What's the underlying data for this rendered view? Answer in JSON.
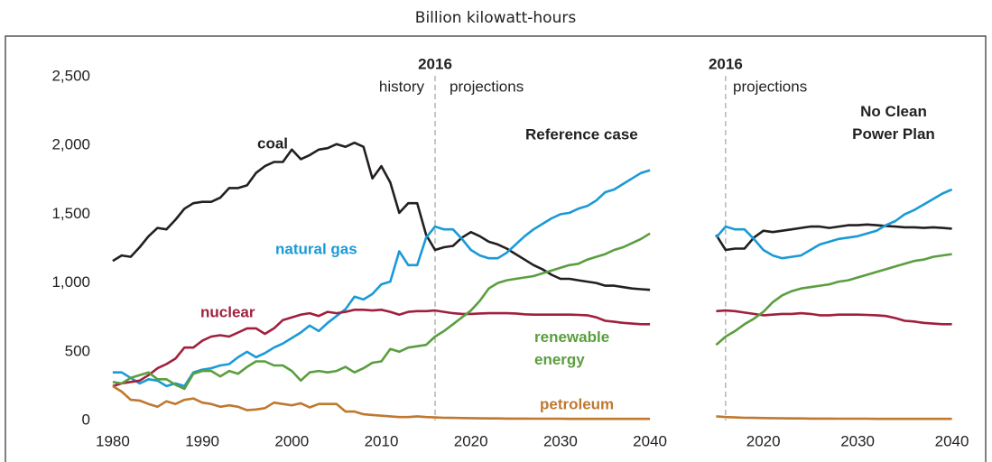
{
  "title": "Billion kilowatt-hours",
  "chart_data": [
    {
      "type": "line",
      "x": [
        1980,
        1981,
        1982,
        1983,
        1984,
        1985,
        1986,
        1987,
        1988,
        1989,
        1990,
        1991,
        1992,
        1993,
        1994,
        1995,
        1996,
        1997,
        1998,
        1999,
        2000,
        2001,
        2002,
        2003,
        2004,
        2005,
        2006,
        2007,
        2008,
        2009,
        2010,
        2011,
        2012,
        2013,
        2014,
        2015,
        2016,
        2017,
        2018,
        2019,
        2020,
        2021,
        2022,
        2023,
        2024,
        2025,
        2026,
        2027,
        2028,
        2029,
        2030,
        2031,
        2032,
        2033,
        2034,
        2035,
        2036,
        2037,
        2038,
        2039,
        2040
      ],
      "xlim": [
        1979,
        2041
      ],
      "xticks": [
        1980,
        1990,
        2000,
        2010,
        2020,
        2030,
        2040
      ],
      "ylim": [
        0,
        2500
      ],
      "yticks": [
        0,
        500,
        {
          "value": 1000,
          "label": "1,000"
        },
        {
          "value": 1500,
          "label": "1,500"
        },
        {
          "value": 2000,
          "label": "2,000"
        },
        {
          "value": 2500,
          "label": "2,500"
        }
      ],
      "divider": 2016,
      "annotations": [
        "history",
        "projections",
        "Reference case"
      ],
      "series": [
        {
          "name": "coal",
          "color": "#231f20",
          "values": [
            1160,
            1200,
            1190,
            1260,
            1340,
            1400,
            1390,
            1460,
            1540,
            1580,
            1590,
            1590,
            1620,
            1690,
            1690,
            1710,
            1800,
            1850,
            1880,
            1880,
            1970,
            1900,
            1930,
            1970,
            1980,
            2010,
            1990,
            2020,
            1990,
            1760,
            1850,
            1730,
            1510,
            1580,
            1580,
            1350,
            1240,
            1260,
            1270,
            1330,
            1370,
            1340,
            1300,
            1280,
            1250,
            1210,
            1170,
            1130,
            1100,
            1060,
            1030,
            1030,
            1020,
            1010,
            1000,
            980,
            980,
            970,
            960,
            955,
            950
          ]
        },
        {
          "name": "natural gas",
          "color": "#1a9ad6",
          "values": [
            350,
            350,
            310,
            270,
            300,
            290,
            250,
            270,
            250,
            350,
            370,
            380,
            400,
            410,
            460,
            500,
            460,
            490,
            530,
            560,
            600,
            640,
            690,
            650,
            710,
            760,
            810,
            900,
            880,
            920,
            990,
            1010,
            1230,
            1130,
            1130,
            1330,
            1410,
            1390,
            1390,
            1320,
            1240,
            1200,
            1180,
            1180,
            1220,
            1280,
            1340,
            1390,
            1430,
            1470,
            1500,
            1510,
            1540,
            1560,
            1600,
            1660,
            1680,
            1720,
            1760,
            1800,
            1820
          ]
        },
        {
          "name": "nuclear",
          "color": "#a0203c",
          "values": [
            250,
            270,
            280,
            290,
            330,
            380,
            410,
            450,
            530,
            530,
            580,
            610,
            620,
            610,
            640,
            670,
            670,
            630,
            670,
            730,
            750,
            770,
            780,
            760,
            790,
            780,
            790,
            805,
            805,
            800,
            805,
            790,
            770,
            790,
            795,
            795,
            800,
            790,
            780,
            775,
            775,
            778,
            780,
            780,
            780,
            778,
            772,
            770,
            770,
            770,
            770,
            770,
            768,
            765,
            750,
            725,
            718,
            710,
            705,
            700,
            700
          ]
        },
        {
          "name": "renewable energy",
          "color": "#5a9e3f",
          "values": [
            280,
            270,
            310,
            330,
            350,
            300,
            300,
            260,
            230,
            340,
            360,
            360,
            320,
            360,
            340,
            390,
            430,
            430,
            400,
            400,
            360,
            290,
            350,
            360,
            350,
            360,
            390,
            350,
            380,
            420,
            430,
            520,
            500,
            530,
            540,
            550,
            610,
            650,
            700,
            750,
            800,
            870,
            960,
            1000,
            1020,
            1030,
            1040,
            1050,
            1070,
            1090,
            1110,
            1130,
            1140,
            1170,
            1190,
            1210,
            1240,
            1260,
            1290,
            1320,
            1360
          ]
        },
        {
          "name": "petroleum",
          "color": "#c0782f",
          "values": [
            250,
            210,
            150,
            145,
            120,
            100,
            140,
            120,
            150,
            160,
            130,
            120,
            100,
            110,
            100,
            75,
            80,
            90,
            130,
            120,
            110,
            125,
            95,
            120,
            120,
            120,
            65,
            65,
            45,
            40,
            35,
            30,
            25,
            25,
            30,
            25,
            22,
            20,
            19,
            18,
            17,
            16,
            15,
            15,
            14,
            14,
            14,
            13,
            13,
            13,
            13,
            12,
            12,
            12,
            12,
            12,
            12,
            12,
            12,
            12,
            12
          ]
        }
      ]
    },
    {
      "type": "line",
      "x": [
        2015,
        2016,
        2017,
        2018,
        2019,
        2020,
        2021,
        2022,
        2023,
        2024,
        2025,
        2026,
        2027,
        2028,
        2029,
        2030,
        2031,
        2032,
        2033,
        2034,
        2035,
        2036,
        2037,
        2038,
        2039,
        2040
      ],
      "xlim": [
        2014,
        2041
      ],
      "xticks": [
        2020,
        2030,
        2040
      ],
      "ylim": [
        0,
        2500
      ],
      "divider": 2016,
      "annotations": [
        "projections",
        "No Clean Power Plan"
      ],
      "series": [
        {
          "color": "#231f20",
          "values": [
            1350,
            1240,
            1250,
            1250,
            1330,
            1380,
            1370,
            1380,
            1390,
            1400,
            1410,
            1410,
            1400,
            1410,
            1420,
            1420,
            1425,
            1420,
            1415,
            1410,
            1405,
            1405,
            1400,
            1405,
            1400,
            1395
          ]
        },
        {
          "color": "#1a9ad6",
          "values": [
            1330,
            1410,
            1390,
            1390,
            1320,
            1240,
            1200,
            1180,
            1190,
            1200,
            1240,
            1280,
            1300,
            1320,
            1330,
            1340,
            1360,
            1380,
            1420,
            1450,
            1500,
            1530,
            1570,
            1610,
            1650,
            1680
          ]
        },
        {
          "color": "#a0203c",
          "values": [
            795,
            800,
            795,
            785,
            775,
            765,
            770,
            775,
            775,
            780,
            775,
            765,
            765,
            770,
            770,
            770,
            768,
            765,
            760,
            745,
            725,
            720,
            710,
            705,
            700,
            700
          ]
        },
        {
          "color": "#5a9e3f",
          "values": [
            550,
            610,
            650,
            700,
            740,
            790,
            860,
            910,
            940,
            960,
            970,
            980,
            990,
            1010,
            1020,
            1040,
            1060,
            1080,
            1100,
            1120,
            1140,
            1160,
            1170,
            1190,
            1200,
            1210
          ]
        },
        {
          "color": "#c0782f",
          "values": [
            30,
            25,
            22,
            20,
            19,
            18,
            17,
            16,
            15,
            15,
            14,
            14,
            14,
            13,
            13,
            13,
            13,
            12,
            12,
            12,
            12,
            12,
            12,
            12,
            12,
            12
          ]
        }
      ]
    }
  ]
}
